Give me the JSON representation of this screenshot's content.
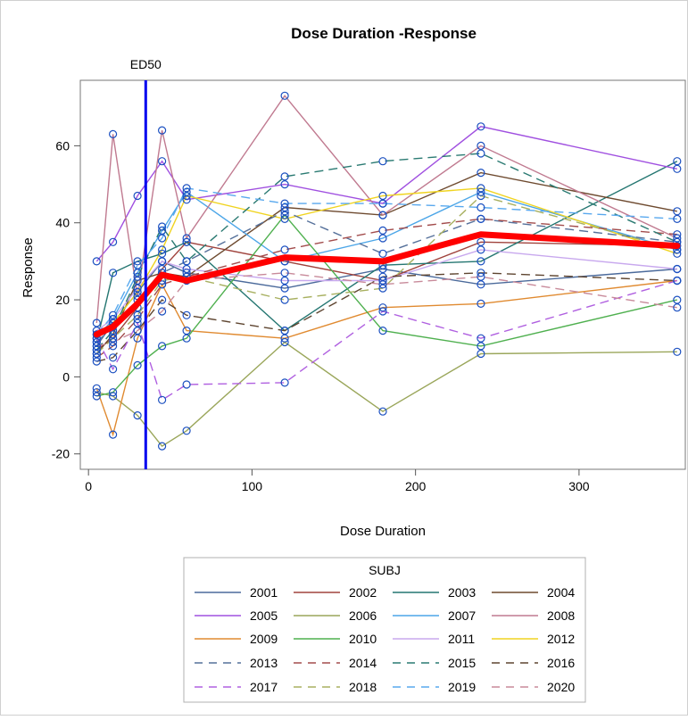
{
  "chart_data": {
    "type": "line",
    "title": "Dose Duration -Response",
    "xlabel": "Dose Duration",
    "ylabel": "Response",
    "xlim": [
      -5,
      365
    ],
    "ylim": [
      -24,
      77
    ],
    "xticks": [
      0,
      100,
      200,
      300
    ],
    "yticks": [
      -20,
      0,
      20,
      40,
      60
    ],
    "grid": false,
    "reference_line": {
      "x": 35,
      "label": "ED50",
      "color": "#0000ee"
    },
    "mean_line": {
      "color": "#ff0000",
      "x": [
        5,
        15,
        30,
        45,
        60,
        120,
        180,
        240,
        360
      ],
      "y": [
        11,
        13,
        19,
        26.5,
        25,
        31,
        30,
        37,
        34
      ]
    },
    "legend": {
      "title": "SUBJ",
      "position": "bottom"
    },
    "series": [
      {
        "name": "2001",
        "color": "#4b6a9b",
        "dash": "solid",
        "x": [
          5,
          15,
          30,
          45,
          60,
          120,
          180,
          240,
          360
        ],
        "y": [
          8,
          14,
          22,
          30,
          27,
          23,
          28,
          24,
          28
        ]
      },
      {
        "name": "2002",
        "color": "#a0433d",
        "dash": "solid",
        "x": [
          5,
          15,
          30,
          45,
          60,
          120,
          180,
          240,
          360
        ],
        "y": [
          7,
          10,
          18,
          28,
          35,
          30,
          25,
          35,
          34
        ]
      },
      {
        "name": "2003",
        "color": "#247671",
        "dash": "solid",
        "x": [
          5,
          15,
          30,
          45,
          60,
          120,
          180,
          240,
          360
        ],
        "y": [
          9,
          27,
          30,
          32,
          35,
          12,
          29,
          30,
          56
        ]
      },
      {
        "name": "2004",
        "color": "#6e4a2f",
        "dash": "solid",
        "x": [
          5,
          15,
          30,
          45,
          60,
          120,
          180,
          240,
          360
        ],
        "y": [
          6,
          11,
          25,
          27,
          26,
          44,
          42,
          53,
          43
        ]
      },
      {
        "name": "2005",
        "color": "#a050e0",
        "dash": "solid",
        "x": [
          5,
          15,
          30,
          45,
          60,
          120,
          180,
          240,
          360
        ],
        "y": [
          30,
          35,
          47,
          56,
          46,
          50,
          45,
          65,
          54
        ]
      },
      {
        "name": "2006",
        "color": "#9aa65a",
        "dash": "solid",
        "x": [
          5,
          15,
          30,
          45,
          60,
          120,
          180,
          240,
          360
        ],
        "y": [
          -4,
          -5,
          -10,
          -18,
          -14,
          9,
          -9,
          6,
          6.5
        ]
      },
      {
        "name": "2007",
        "color": "#4ca6e8",
        "dash": "solid",
        "x": [
          5,
          15,
          30,
          45,
          60,
          120,
          180,
          240,
          360
        ],
        "y": [
          10,
          15,
          27,
          38,
          48,
          30,
          36,
          48,
          33
        ]
      },
      {
        "name": "2008",
        "color": "#c07a90",
        "dash": "solid",
        "x": [
          5,
          15,
          30,
          45,
          60,
          120,
          180,
          240,
          360
        ],
        "y": [
          14,
          63,
          21,
          64,
          36,
          73,
          42,
          60,
          36
        ]
      },
      {
        "name": "2009",
        "color": "#e08a30",
        "dash": "solid",
        "x": [
          5,
          15,
          30,
          45,
          60,
          120,
          180,
          240,
          360
        ],
        "y": [
          -3,
          -15,
          10,
          24,
          12,
          10,
          18,
          19,
          25
        ]
      },
      {
        "name": "2010",
        "color": "#4fb04f",
        "dash": "solid",
        "x": [
          5,
          15,
          30,
          45,
          60,
          120,
          180,
          240,
          360
        ],
        "y": [
          -5,
          -4,
          3,
          8,
          10,
          42,
          12,
          8,
          20
        ]
      },
      {
        "name": "2011",
        "color": "#c8a8ee",
        "dash": "solid",
        "x": [
          5,
          15,
          30,
          45,
          60,
          120,
          180,
          240,
          360
        ],
        "y": [
          12,
          15,
          23,
          30,
          28,
          25,
          25,
          33,
          28
        ]
      },
      {
        "name": "2012",
        "color": "#f0d420",
        "dash": "solid",
        "x": [
          5,
          15,
          30,
          45,
          60,
          120,
          180,
          240,
          360
        ],
        "y": [
          11,
          14,
          22,
          33,
          47,
          41,
          47,
          49,
          32
        ]
      },
      {
        "name": "2013",
        "color": "#55709a",
        "dash": "dashed",
        "x": [
          5,
          15,
          30,
          45,
          60,
          120,
          180,
          240,
          360
        ],
        "y": [
          9,
          13,
          20,
          27,
          30,
          43,
          32,
          41,
          35
        ]
      },
      {
        "name": "2014",
        "color": "#a34d4d",
        "dash": "dashed",
        "x": [
          5,
          15,
          30,
          45,
          60,
          120,
          180,
          240,
          360
        ],
        "y": [
          5,
          8,
          15,
          24,
          26,
          33,
          38,
          41,
          37
        ]
      },
      {
        "name": "2015",
        "color": "#2a7a72",
        "dash": "dashed",
        "x": [
          5,
          15,
          30,
          45,
          60,
          120,
          180,
          240,
          360
        ],
        "y": [
          7,
          12,
          26,
          39,
          30,
          52,
          56,
          58,
          35
        ]
      },
      {
        "name": "2016",
        "color": "#5e4530",
        "dash": "dashed",
        "x": [
          5,
          15,
          30,
          45,
          60,
          120,
          180,
          240,
          360
        ],
        "y": [
          4,
          5,
          12,
          20,
          16,
          12,
          26,
          27,
          25
        ]
      },
      {
        "name": "2017",
        "color": "#b060e0",
        "dash": "dashed",
        "x": [
          5,
          15,
          30,
          45,
          60,
          120,
          180,
          240,
          360
        ],
        "y": [
          10,
          2,
          14,
          -6,
          -2,
          -1.5,
          17,
          10,
          25
        ]
      },
      {
        "name": "2018",
        "color": "#a8b060",
        "dash": "dashed",
        "x": [
          5,
          15,
          30,
          45,
          60,
          120,
          180,
          240,
          360
        ],
        "y": [
          6,
          10,
          16,
          25,
          26,
          20,
          23,
          47,
          33
        ]
      },
      {
        "name": "2019",
        "color": "#58a8ee",
        "dash": "dashed",
        "x": [
          5,
          15,
          30,
          45,
          60,
          120,
          180,
          240,
          360
        ],
        "y": [
          11,
          16,
          29,
          36,
          49,
          45,
          45,
          44,
          41
        ]
      },
      {
        "name": "2020",
        "color": "#c88a9a",
        "dash": "dashed",
        "x": [
          5,
          15,
          30,
          45,
          60,
          120,
          180,
          240,
          360
        ],
        "y": [
          8,
          9,
          12,
          17,
          25,
          27,
          24,
          26,
          18
        ]
      }
    ]
  }
}
